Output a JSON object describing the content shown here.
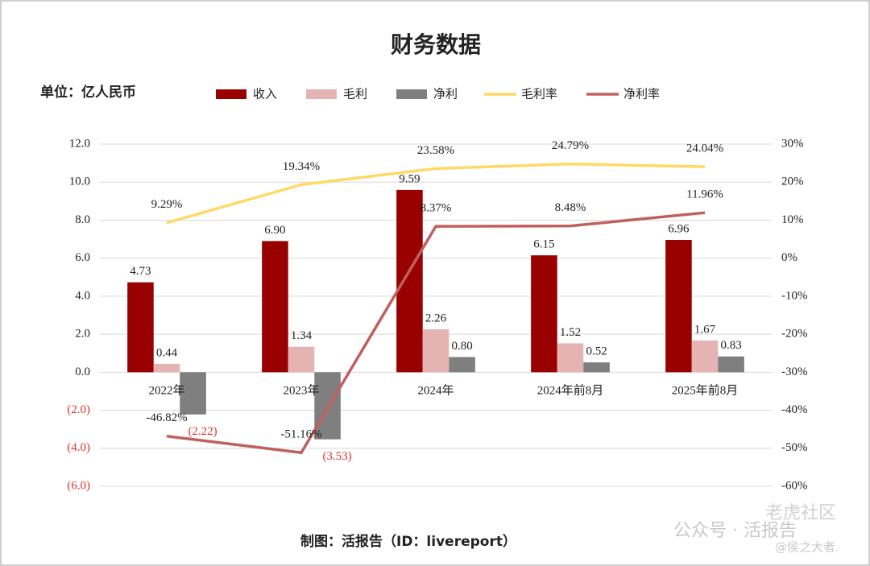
{
  "chart_data": {
    "type": "bar",
    "title": "财务数据",
    "unit_label": "单位：亿人民币",
    "source": "制图：活报告（ID：livereport）",
    "watermarks": [
      "公众号 · 活报告",
      "老虎社区",
      "@侯之大者."
    ],
    "categories": [
      "2022年",
      "2023年",
      "2024年",
      "2024年前8月",
      "2025年前8月"
    ],
    "series": [
      {
        "name": "收入",
        "color": "#990000",
        "values": [
          4.73,
          6.9,
          9.59,
          6.15,
          6.96
        ],
        "value_labels": [
          "4.73",
          "6.90",
          "9.59",
          "6.15",
          "6.96"
        ]
      },
      {
        "name": "毛利",
        "color": "#e6b3b3",
        "values": [
          0.44,
          1.34,
          2.26,
          1.52,
          1.67
        ],
        "value_labels": [
          "0.44",
          "1.34",
          "2.26",
          "1.52",
          "1.67"
        ]
      },
      {
        "name": "净利",
        "color": "#7f7f7f",
        "values": [
          -2.22,
          -3.53,
          0.8,
          0.52,
          0.83
        ],
        "value_labels": [
          "(2.22)",
          "(3.53)",
          "0.80",
          "0.52",
          "0.83"
        ]
      },
      {
        "name": "毛利率",
        "color": "#ffd966",
        "type": "line",
        "axis": "y2",
        "values": [
          9.29,
          19.34,
          23.58,
          24.79,
          24.04
        ],
        "value_labels": [
          "9.29%",
          "19.34%",
          "23.58%",
          "24.79%",
          "24.04%"
        ]
      },
      {
        "name": "净利率",
        "color": "#c0605e",
        "type": "line",
        "axis": "y2",
        "values": [
          -46.82,
          -51.16,
          8.37,
          8.48,
          11.96
        ],
        "value_labels": [
          "-46.82%",
          "-51.16%",
          "8.37%",
          "8.48%",
          "11.96%"
        ]
      }
    ],
    "ylim": [
      -6,
      12
    ],
    "yticks": [
      {
        "value": -6,
        "label": "(6.0)"
      },
      {
        "value": -4,
        "label": "(4.0)"
      },
      {
        "value": -2,
        "label": "(2.0)"
      },
      {
        "value": 0,
        "label": "0.0"
      },
      {
        "value": 2,
        "label": "2.0"
      },
      {
        "value": 4,
        "label": "4.0"
      },
      {
        "value": 6,
        "label": "6.0"
      },
      {
        "value": 8,
        "label": "8.0"
      },
      {
        "value": 10,
        "label": "10.0"
      },
      {
        "value": 12,
        "label": "12.0"
      }
    ],
    "y2lim": [
      -60,
      30
    ],
    "y2ticks": [
      {
        "value": -60,
        "label": "-60%"
      },
      {
        "value": -50,
        "label": "-50%"
      },
      {
        "value": -40,
        "label": "-40%"
      },
      {
        "value": -30,
        "label": "-30%"
      },
      {
        "value": -20,
        "label": "-20%"
      },
      {
        "value": -10,
        "label": "-10%"
      },
      {
        "value": 0,
        "label": "0%"
      },
      {
        "value": 10,
        "label": "10%"
      },
      {
        "value": 20,
        "label": "20%"
      },
      {
        "value": 30,
        "label": "30%"
      }
    ],
    "grid": true,
    "legend": "top",
    "negative_color": "#e03030"
  }
}
